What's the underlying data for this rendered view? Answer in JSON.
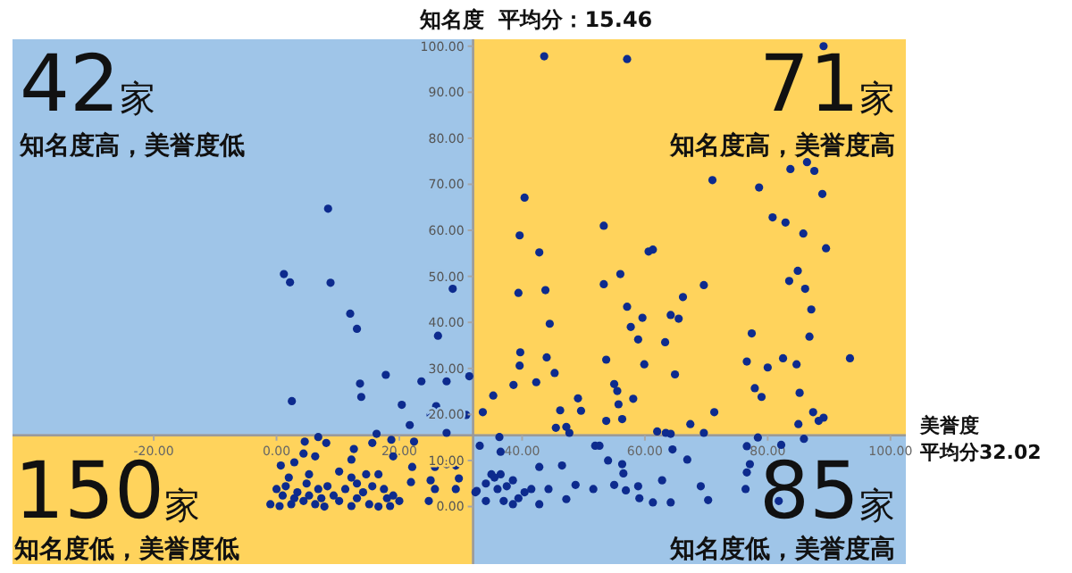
{
  "chart_data": {
    "type": "scatter",
    "xlabel": "美誉度",
    "ylabel": "知名度  平均分：15.46",
    "annotations": [
      "42家",
      "知名度高，美誉度低",
      "71家",
      "知名度高，美誉度高",
      "150家",
      "知名度低，美誉度低",
      "85家",
      "知名度低，美誉度高",
      "平均分32.02"
    ],
    "xlim": [
      -43,
      102.5
    ],
    "ylim": [
      -12.5,
      101.5
    ],
    "xticks": [
      {
        "value": -20,
        "label": "-20.00"
      },
      {
        "value": 0,
        "label": "0.00"
      },
      {
        "value": 20,
        "label": "20.00"
      },
      {
        "value": 40,
        "label": "40.00"
      },
      {
        "value": 60,
        "label": "60.00"
      },
      {
        "value": 80,
        "label": "80.00"
      },
      {
        "value": 100,
        "label": "100.00"
      }
    ],
    "yticks": [
      {
        "value": 0,
        "label": "0.00"
      },
      {
        "value": 10,
        "label": "10.00"
      },
      {
        "value": 20,
        "label": "20.00"
      },
      {
        "value": 30,
        "label": "30.00"
      },
      {
        "value": 40,
        "label": "40.00"
      },
      {
        "value": 50,
        "label": "50.00"
      },
      {
        "value": 60,
        "label": "60.00"
      },
      {
        "value": 70,
        "label": "70.00"
      },
      {
        "value": 80,
        "label": "80.00"
      },
      {
        "value": 90,
        "label": "90.00"
      },
      {
        "value": 100,
        "label": "100.00"
      }
    ],
    "ref_lines": [
      {
        "axis": "x",
        "value": 32.02
      },
      {
        "axis": "y",
        "value": 15.46
      }
    ],
    "bands": [
      {
        "axis": "x",
        "from": 32.02,
        "to": 102.5,
        "color": "#ffd35c"
      },
      {
        "axis": "y",
        "from": -12.5,
        "to": 15.46,
        "color": "#ffd35c"
      }
    ],
    "marker": "circle",
    "series": [
      {
        "color": "#0d2b8e",
        "x": [
          8.4,
          1.2,
          2.2,
          8.8,
          12.0,
          13.1,
          28.7,
          26.3,
          17.8,
          13.6,
          13.8,
          2.5,
          23.6,
          27.7,
          31.4,
          20.4,
          21.7,
          26.0,
          25.1,
          27.7,
          30.9,
          16.3,
          43.6,
          57.1,
          89.1,
          83.7,
          86.4,
          87.6,
          88.9,
          71.0,
          78.6,
          40.4,
          39.6,
          53.3,
          42.8,
          80.8,
          82.9,
          85.8,
          89.5,
          60.6,
          61.3,
          53.3,
          56.0,
          43.8,
          39.4,
          69.6,
          66.2,
          84.9,
          83.5,
          86.1,
          87.1,
          86.8,
          44.5,
          57.1,
          59.6,
          57.7,
          64.2,
          65.5,
          58.9,
          63.3,
          77.4,
          39.7,
          39.6,
          44.0,
          53.7,
          59.9,
          45.3,
          55.0,
          55.5,
          42.3,
          38.6,
          35.3,
          33.6,
          46.2,
          49.1,
          49.6,
          55.7,
          58.1,
          53.7,
          56.3,
          45.5,
          47.7,
          47.2,
          64.9,
          76.6,
          80.0,
          82.5,
          84.7,
          93.4,
          77.9,
          79.0,
          85.2,
          87.4,
          85.0,
          89.1,
          88.3,
          71.3,
          67.4,
          69.6,
          62.0,
          63.4,
          64.2,
          4.6,
          6.8,
          8.1,
          15.6,
          18.7,
          22.4,
          12.6,
          19.0,
          12.2,
          0.7,
          2.9,
          6.3,
          4.4,
          22.1,
          25.8,
          27.7,
          29.2,
          29.7,
          25.1,
          21.9,
          24.8,
          18.5,
          10.2,
          14.6,
          16.6,
          12.2,
          5.3,
          2.0,
          0.0,
          1.5,
          3.4,
          4.9,
          6.8,
          8.3,
          9.3,
          11.2,
          13.1,
          14.1,
          15.6,
          17.5,
          19.0,
          20.0,
          -1.0,
          0.5,
          2.4,
          4.4,
          6.3,
          7.8,
          10.2,
          12.2,
          15.1,
          16.6,
          1.0,
          2.9,
          5.3,
          7.3,
          13.1,
          18.0,
          29.2,
          25.8,
          36.5,
          32.6,
          35.0,
          36.5,
          34.1,
          36.0,
          37.5,
          38.5,
          37.0,
          38.5,
          39.4,
          40.4,
          41.5,
          42.8,
          44.3,
          42.8,
          46.5,
          47.2,
          48.7,
          51.6,
          51.9,
          52.6,
          54.0,
          56.3,
          56.5,
          55.0,
          56.9,
          58.9,
          59.1,
          62.8,
          61.3,
          64.2,
          64.5,
          66.9,
          69.1,
          70.3,
          76.6,
          77.1,
          76.6,
          76.4,
          82.2,
          81.8,
          85.9,
          78.4,
          33.1,
          36.3,
          32.4,
          34.1,
          35.5
        ],
        "values": [
          64.7,
          50.5,
          48.7,
          48.6,
          41.9,
          38.6,
          47.3,
          37.1,
          28.6,
          26.7,
          23.8,
          22.9,
          27.2,
          27.2,
          28.3,
          22.1,
          17.7,
          21.8,
          19.9,
          16.0,
          19.9,
          15.8,
          97.8,
          97.2,
          100,
          73.3,
          74.8,
          72.9,
          67.9,
          70.9,
          69.3,
          67.1,
          58.9,
          61.0,
          55.2,
          62.8,
          61.7,
          59.3,
          56.1,
          55.4,
          55.8,
          48.3,
          50.5,
          47.0,
          46.4,
          48.1,
          45.5,
          51.2,
          49.0,
          47.3,
          42.8,
          36.9,
          39.7,
          43.4,
          41.0,
          39.0,
          41.6,
          40.8,
          36.3,
          35.7,
          37.6,
          33.5,
          30.6,
          32.4,
          31.9,
          30.9,
          29.0,
          26.6,
          25.1,
          27.0,
          26.4,
          24.1,
          20.5,
          20.9,
          23.5,
          20.8,
          22.2,
          23.4,
          18.6,
          19.0,
          17.1,
          16.0,
          17.3,
          28.7,
          31.5,
          30.2,
          32.2,
          30.9,
          32.2,
          25.7,
          23.8,
          24.7,
          20.5,
          17.9,
          19.3,
          18.6,
          20.5,
          17.9,
          16.0,
          16.3,
          16.0,
          15.8,
          14.1,
          15.1,
          13.8,
          13.8,
          14.5,
          14.1,
          12.5,
          10.9,
          10.2,
          8.9,
          9.6,
          10.9,
          11.5,
          8.6,
          8.6,
          9.2,
          8.9,
          6.1,
          5.7,
          5.3,
          1.2,
          0.1,
          7.6,
          7.0,
          7.0,
          6.3,
          7.0,
          6.3,
          3.8,
          4.4,
          3.1,
          5.0,
          3.8,
          4.4,
          2.4,
          3.8,
          5.0,
          3.1,
          4.4,
          3.8,
          2.4,
          1.2,
          0.5,
          0.1,
          0.5,
          1.2,
          0.5,
          0.0,
          1.2,
          0.1,
          0.5,
          0.0,
          2.4,
          1.8,
          2.4,
          1.8,
          1.8,
          1.8,
          3.8,
          3.8,
          11.9,
          3.4,
          7.0,
          7.0,
          5.0,
          3.8,
          4.4,
          5.7,
          1.2,
          0.5,
          1.8,
          3.1,
          3.8,
          0.5,
          3.8,
          8.6,
          8.9,
          1.6,
          4.7,
          3.8,
          13.2,
          13.2,
          10.0,
          9.2,
          7.2,
          4.7,
          3.5,
          4.4,
          1.8,
          5.7,
          0.9,
          0.9,
          12.4,
          10.2,
          4.4,
          1.4,
          13.1,
          9.2,
          7.4,
          3.8,
          13.4,
          1.2,
          14.7,
          15.0,
          13.2,
          15.1,
          3.1,
          1.2,
          6.3
        ]
      }
    ]
  }
}
